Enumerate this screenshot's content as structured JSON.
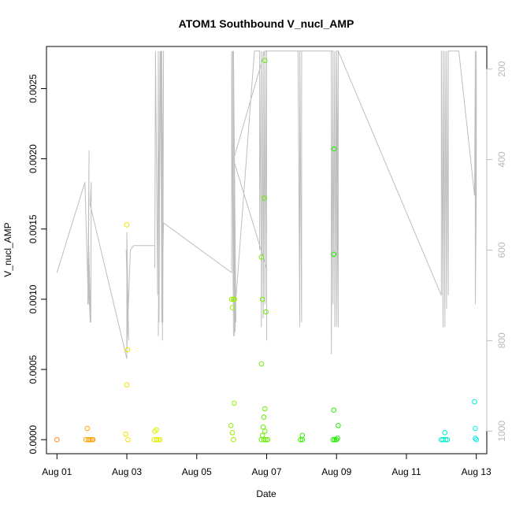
{
  "chart_data": {
    "type": "scatter",
    "title": "ATOM1 Southbound V_nucl_AMP",
    "xlabel": "Date",
    "ylabel": "V_nucl_AMP",
    "x_tick_labels": [
      "Aug 01",
      "Aug 03",
      "Aug 05",
      "Aug 07",
      "Aug 09",
      "Aug 11",
      "Aug 13"
    ],
    "x_tick_values": [
      0,
      2,
      4,
      6,
      8,
      10,
      12
    ],
    "y_tick_labels": [
      "0.0000",
      "0.0005",
      "0.0010",
      "0.0015",
      "0.0020",
      "0.0025"
    ],
    "y_tick_values": [
      0,
      0.0005,
      0.001,
      0.0015,
      0.002,
      0.0025
    ],
    "ylim": [
      -0.0001,
      0.0028
    ],
    "xlim": [
      -0.3,
      12.3
    ],
    "right_axis": {
      "tick_labels": [
        "200",
        "400",
        "600",
        "800",
        "1000"
      ],
      "tick_values": [
        200,
        400,
        600,
        800,
        1000
      ],
      "range": [
        150,
        1050
      ],
      "color": "#bebebe"
    },
    "point_colors_note": "points colored by date from orange through yellow and green to cyan",
    "points": [
      {
        "x": 0.0,
        "y": 0.0,
        "c": "#ff8c1a"
      },
      {
        "x": 0.87,
        "y": 8e-05,
        "c": "#ffa000"
      },
      {
        "x": 0.83,
        "y": 0.0,
        "c": "#ffa000"
      },
      {
        "x": 0.9,
        "y": 0.0,
        "c": "#ffa000"
      },
      {
        "x": 0.95,
        "y": 0.0,
        "c": "#ffa000"
      },
      {
        "x": 1.0,
        "y": 0.0,
        "c": "#ffa000"
      },
      {
        "x": 1.03,
        "y": 0.0,
        "c": "#ffa000"
      },
      {
        "x": 2.0,
        "y": 0.00153,
        "c": "#f0e000"
      },
      {
        "x": 2.02,
        "y": 0.00064,
        "c": "#f0e000"
      },
      {
        "x": 2.0,
        "y": 0.00039,
        "c": "#f0e000"
      },
      {
        "x": 1.97,
        "y": 4e-05,
        "c": "#f0e000"
      },
      {
        "x": 2.03,
        "y": 0.0,
        "c": "#f0e000"
      },
      {
        "x": 2.8,
        "y": 6e-05,
        "c": "#e0f000"
      },
      {
        "x": 2.85,
        "y": 7e-05,
        "c": "#e0f000"
      },
      {
        "x": 2.78,
        "y": 0.0,
        "c": "#e0f000"
      },
      {
        "x": 2.85,
        "y": 0.0,
        "c": "#e0f000"
      },
      {
        "x": 2.9,
        "y": 0.0,
        "c": "#e0f000"
      },
      {
        "x": 2.95,
        "y": 0.0,
        "c": "#e0f000"
      },
      {
        "x": 5.0,
        "y": 0.001,
        "c": "#99ee00"
      },
      {
        "x": 5.05,
        "y": 0.001,
        "c": "#99ee00"
      },
      {
        "x": 5.08,
        "y": 0.001,
        "c": "#99ee00"
      },
      {
        "x": 5.02,
        "y": 0.00094,
        "c": "#99ee00"
      },
      {
        "x": 5.07,
        "y": 0.00026,
        "c": "#99ee00"
      },
      {
        "x": 4.98,
        "y": 0.0001,
        "c": "#99ee00"
      },
      {
        "x": 5.02,
        "y": 5e-05,
        "c": "#99ee00"
      },
      {
        "x": 5.05,
        "y": 0.0,
        "c": "#99ee00"
      },
      {
        "x": 5.85,
        "y": 0.0013,
        "c": "#77ee00"
      },
      {
        "x": 5.88,
        "y": 0.001,
        "c": "#77ee00"
      },
      {
        "x": 5.95,
        "y": 0.0027,
        "c": "#66ee00"
      },
      {
        "x": 5.93,
        "y": 0.00172,
        "c": "#66ee00"
      },
      {
        "x": 5.98,
        "y": 0.00091,
        "c": "#66ee00"
      },
      {
        "x": 5.85,
        "y": 0.00054,
        "c": "#77ee00"
      },
      {
        "x": 5.95,
        "y": 0.00022,
        "c": "#66ee00"
      },
      {
        "x": 5.92,
        "y": 0.00016,
        "c": "#66ee00"
      },
      {
        "x": 5.9,
        "y": 9e-05,
        "c": "#66ee00"
      },
      {
        "x": 5.95,
        "y": 6e-05,
        "c": "#66ee00"
      },
      {
        "x": 5.88,
        "y": 3e-05,
        "c": "#66ee00"
      },
      {
        "x": 5.85,
        "y": 0.0,
        "c": "#66ee00"
      },
      {
        "x": 5.92,
        "y": 0.0,
        "c": "#66ee00"
      },
      {
        "x": 5.98,
        "y": 0.0,
        "c": "#66ee00"
      },
      {
        "x": 6.03,
        "y": 0.0,
        "c": "#66ee00"
      },
      {
        "x": 7.02,
        "y": 3e-05,
        "c": "#33ee00"
      },
      {
        "x": 6.97,
        "y": 0.0,
        "c": "#33ee00"
      },
      {
        "x": 7.02,
        "y": 0.0,
        "c": "#33ee00"
      },
      {
        "x": 7.93,
        "y": 0.00207,
        "c": "#22ee00"
      },
      {
        "x": 7.92,
        "y": 0.00132,
        "c": "#22ee00"
      },
      {
        "x": 7.92,
        "y": 0.00021,
        "c": "#22ee00"
      },
      {
        "x": 8.05,
        "y": 0.0001,
        "c": "#22ee00"
      },
      {
        "x": 8.03,
        "y": 1e-05,
        "c": "#22ee00"
      },
      {
        "x": 7.9,
        "y": 0.0,
        "c": "#22ee00"
      },
      {
        "x": 7.95,
        "y": 0.0,
        "c": "#22ee00"
      },
      {
        "x": 8.0,
        "y": 0.0,
        "c": "#22ee00"
      },
      {
        "x": 11.1,
        "y": 5e-05,
        "c": "#00eecc"
      },
      {
        "x": 11.0,
        "y": 0.0,
        "c": "#00eecc"
      },
      {
        "x": 11.05,
        "y": 0.0,
        "c": "#00eecc"
      },
      {
        "x": 11.12,
        "y": 0.0,
        "c": "#00eecc"
      },
      {
        "x": 11.17,
        "y": 0.0,
        "c": "#00eecc"
      },
      {
        "x": 11.95,
        "y": 0.00027,
        "c": "#00eedd"
      },
      {
        "x": 11.97,
        "y": 8e-05,
        "c": "#00eedd"
      },
      {
        "x": 11.97,
        "y": 1e-05,
        "c": "#00eedd"
      },
      {
        "x": 12.0,
        "y": 0.0,
        "c": "#00eedd"
      }
    ],
    "line_series": {
      "name": "",
      "color": "#bebebe",
      "axis": "right",
      "x": [
        0.0,
        0.8,
        0.9,
        0.92,
        0.88,
        0.9,
        0.95,
        0.9,
        0.97,
        0.98,
        0.95,
        2.0,
        2.0,
        2.05,
        1.98,
        2.03,
        2.0,
        2.1,
        2.2,
        2.8,
        2.8,
        2.82,
        2.88,
        2.9,
        2.92,
        2.95,
        2.9,
        2.97,
        3.0,
        2.98,
        3.02,
        3.0,
        3.03,
        3.05,
        3.0,
        3.05,
        5.0,
        5.0,
        5.05,
        5.0,
        5.08,
        5.05,
        5.1,
        5.03,
        5.12,
        5.05,
        5.1,
        5.65,
        5.8,
        5.8,
        5.85,
        5.85,
        5.9,
        5.9,
        5.95,
        5.95,
        6.0,
        6.0,
        6.0,
        5.05,
        5.95,
        6.2,
        7.9,
        7.85,
        7.85,
        7.3,
        6.9,
        6.95,
        6.95,
        7.0,
        7.0,
        7.85,
        7.85,
        7.9,
        7.9,
        7.95,
        7.95,
        8.0,
        8.0,
        8.05,
        8.05,
        8.0,
        8.05,
        11.0,
        11.0,
        11.05,
        11.05,
        11.1,
        11.1,
        11.15,
        11.15,
        11.2,
        11.2,
        11.5,
        11.95,
        11.97,
        11.97,
        12.0,
        12.0,
        11.97
      ],
      "y": [
        650,
        450,
        720,
        380,
        720,
        660,
        760,
        560,
        760,
        450,
        500,
        840,
        560,
        800,
        600,
        700,
        820,
        600,
        590,
        590,
        640,
        160,
        700,
        160,
        760,
        160,
        790,
        160,
        760,
        160,
        800,
        160,
        760,
        160,
        740,
        540,
        650,
        160,
        790,
        160,
        790,
        160,
        780,
        160,
        760,
        160,
        730,
        160,
        160,
        600,
        160,
        770,
        160,
        750,
        160,
        720,
        160,
        800,
        640,
        400,
        160,
        160,
        160,
        780,
        160,
        160,
        160,
        770,
        160,
        760,
        160,
        160,
        830,
        160,
        720,
        160,
        770,
        160,
        770,
        160,
        770,
        160,
        160,
        700,
        160,
        770,
        160,
        770,
        160,
        730,
        160,
        700,
        160,
        160,
        480,
        160,
        720,
        480,
        160,
        720
      ]
    }
  }
}
